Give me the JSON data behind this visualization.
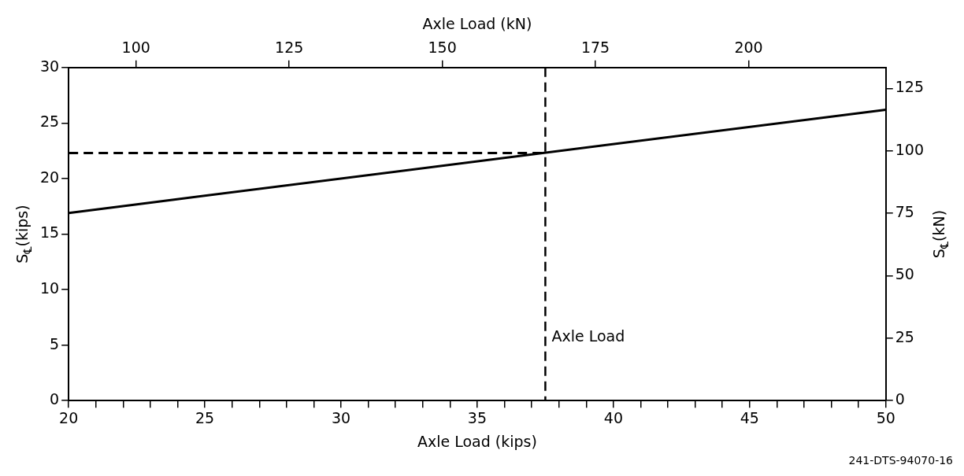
{
  "chart_data": {
    "type": "line",
    "xlabel": "Axle Load (kips)",
    "ylabel": "S$_{℄}$(kips)",
    "y2label": "S$_{℄}$(kN)",
    "x2label": "Axle Load (kN)",
    "xlim": [
      20,
      50
    ],
    "xticks": [
      20,
      {
        "value": 21,
        "label": null
      },
      {
        "value": 22,
        "label": null
      },
      {
        "value": 23,
        "label": null
      },
      {
        "value": 24,
        "label": null
      },
      25,
      {
        "value": 26,
        "label": null
      },
      {
        "value": 27,
        "label": null
      },
      {
        "value": 28,
        "label": null
      },
      {
        "value": 29,
        "label": null
      },
      30,
      {
        "value": 31,
        "label": null
      },
      {
        "value": 32,
        "label": null
      },
      {
        "value": 33,
        "label": null
      },
      {
        "value": 34,
        "label": null
      },
      35,
      {
        "value": 36,
        "label": null
      },
      {
        "value": 37,
        "label": null
      },
      {
        "value": 38,
        "label": null
      },
      {
        "value": 39,
        "label": null
      },
      40,
      {
        "value": 41,
        "label": null
      },
      {
        "value": 42,
        "label": null
      },
      {
        "value": 43,
        "label": null
      },
      {
        "value": 44,
        "label": null
      },
      45,
      {
        "value": 46,
        "label": null
      },
      {
        "value": 47,
        "label": null
      },
      {
        "value": 48,
        "label": null
      },
      {
        "value": 49,
        "label": null
      },
      50
    ],
    "x2lim": [
      89,
      222.4
    ],
    "x2ticks": [
      100,
      125,
      150,
      175,
      200
    ],
    "ylim": [
      0,
      30
    ],
    "yticks": [
      0,
      5,
      10,
      15,
      20,
      25,
      30
    ],
    "y2lim": [
      0,
      133.4
    ],
    "y2ticks": [
      0,
      25,
      50,
      75,
      100,
      125
    ],
    "grid": false,
    "legend": false,
    "marker": "none",
    "series": [
      {
        "color": "#000000",
        "x": [
          20,
          50
        ],
        "values": [
          16.9,
          26.2
        ],
        "line_style": "solid"
      },
      {
        "color": "#000000",
        "x": [
          20,
          37.5
        ],
        "values": [
          22.3,
          22.3
        ],
        "line_style": "dashed"
      }
    ],
    "ref_lines": [
      {
        "axis": "x",
        "value": 37.5,
        "label": "Axle Load",
        "line_style": "dashed",
        "color": "#000000"
      }
    ],
    "annotations": [
      "241-DTS-94070-16"
    ]
  }
}
